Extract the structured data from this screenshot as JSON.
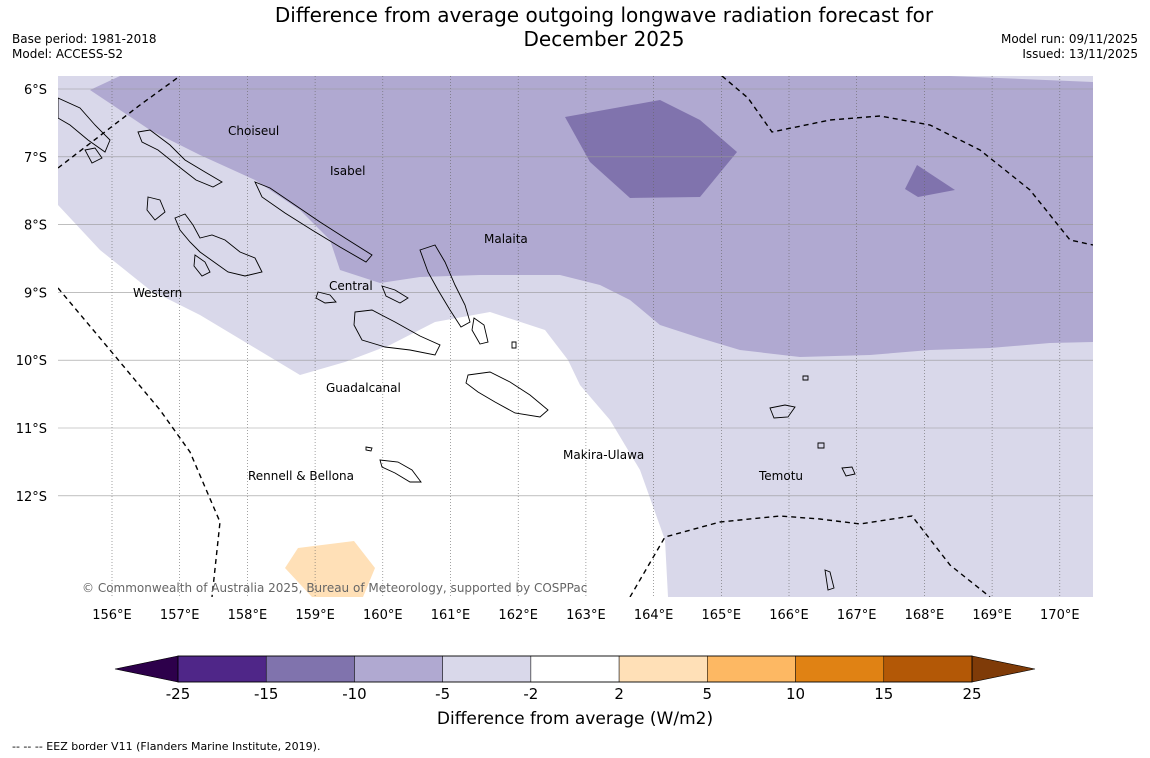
{
  "header": {
    "title_line1": "Difference from average outgoing longwave radiation forecast for",
    "title_line2": "December 2025",
    "base_period": "Base period: 1981-2018",
    "model": "Model: ACCESS-S2",
    "model_run": "Model run: 09/11/2025",
    "issued": "Issued: 13/11/2025"
  },
  "map": {
    "lat_labels": [
      "6°S",
      "7°S",
      "8°S",
      "9°S",
      "10°S",
      "11°S",
      "12°S"
    ],
    "lon_labels": [
      "156°E",
      "157°E",
      "158°E",
      "159°E",
      "160°E",
      "161°E",
      "162°E",
      "163°E",
      "164°E",
      "165°E",
      "166°E",
      "167°E",
      "168°E",
      "169°E",
      "170°E"
    ],
    "provinces": [
      "Choiseul",
      "Isabel",
      "Malaita",
      "Western",
      "Central",
      "Guadalcanal",
      "Makira-Ulawa",
      "Rennell & Bellona",
      "Temotu"
    ],
    "copyright": "© Commonwealth of Australia 2025, Bureau of Meteorology, supported by COSPPac",
    "colors": {
      "lt_m15": "#4f2688",
      "m15_m10": "#8073ad",
      "m10_m5": "#b0a9d1",
      "m5_m2": "#d9d8ea",
      "m2_2": "#ffffff",
      "p2_p5": "#ffe0b7",
      "p5_p10": "#fdb863",
      "p10_p15": "#e08214",
      "p15_p25": "#b35806",
      "lt_m25": "#2d004b",
      "gt_25": "#7f3b08"
    }
  },
  "colorbar": {
    "ticks": [
      "-25",
      "-15",
      "-10",
      "-5",
      "-2",
      "2",
      "5",
      "10",
      "15",
      "25"
    ],
    "label": "Difference from average (W/m2)",
    "colors": [
      "#4f2688",
      "#8073ad",
      "#b0a9d1",
      "#d9d8ea",
      "#ffffff",
      "#ffe0b7",
      "#fdb863",
      "#e08214",
      "#b35806"
    ],
    "low_extend": "#2d004b",
    "high_extend": "#7f3b08"
  },
  "footer": {
    "eez_note": "--  --  -- EEZ border V11 (Flanders Marine Institute, 2019)."
  }
}
